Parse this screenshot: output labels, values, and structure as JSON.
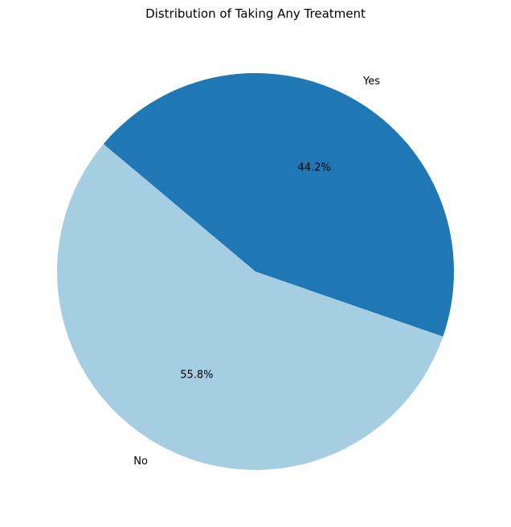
{
  "chart_data": {
    "type": "pie",
    "title": "Distribution of Taking Any Treatment",
    "categories": [
      "No",
      "Yes"
    ],
    "values": [
      55.8,
      44.2
    ],
    "percent_labels": [
      "55.8%",
      "44.2%"
    ],
    "colors": [
      "#a6cee3",
      "#1f78b4"
    ],
    "start_angle_deg": 140,
    "legend": "none"
  }
}
